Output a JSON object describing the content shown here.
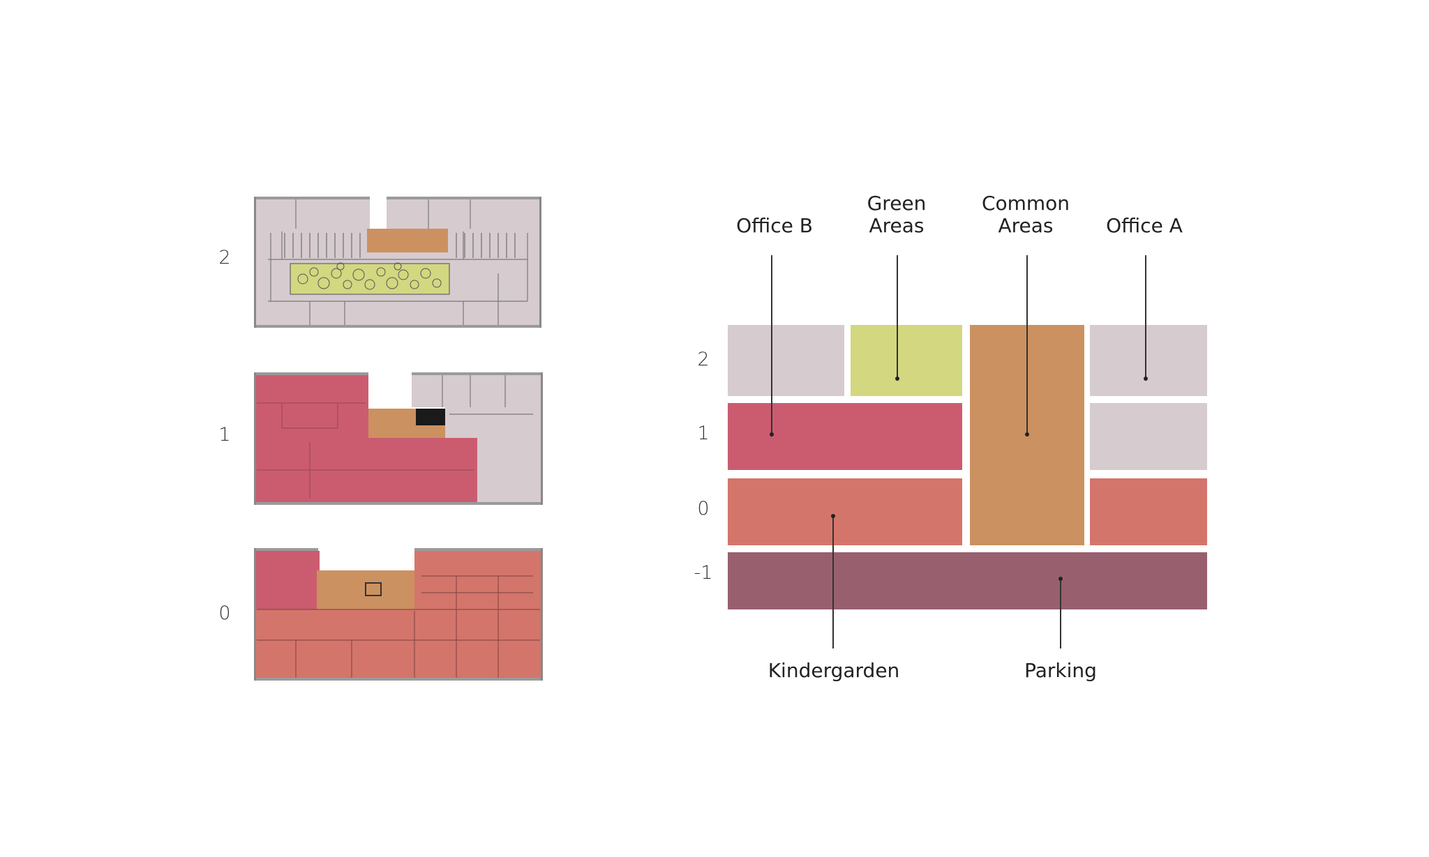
{
  "plans": {
    "levels": [
      {
        "id": "plan-level-2",
        "label": "2"
      },
      {
        "id": "plan-level-1",
        "label": "1"
      },
      {
        "id": "plan-level-0",
        "label": "0"
      }
    ]
  },
  "diagram": {
    "levels": [
      "2",
      "1",
      "0",
      "-1"
    ],
    "labels": {
      "office_b": "Office B",
      "green_areas": "Green\nAreas",
      "common_areas": "Common\nAreas",
      "office_a": "Office A",
      "kindergarden": "Kindergarden",
      "parking": "Parking"
    },
    "colors": {
      "office": "#d6cbcf",
      "green": "#d2d780",
      "common": "#cc9160",
      "office_b_red": "#cb5c70",
      "kindergarden": "#d4756b",
      "parking": "#98606f"
    }
  }
}
